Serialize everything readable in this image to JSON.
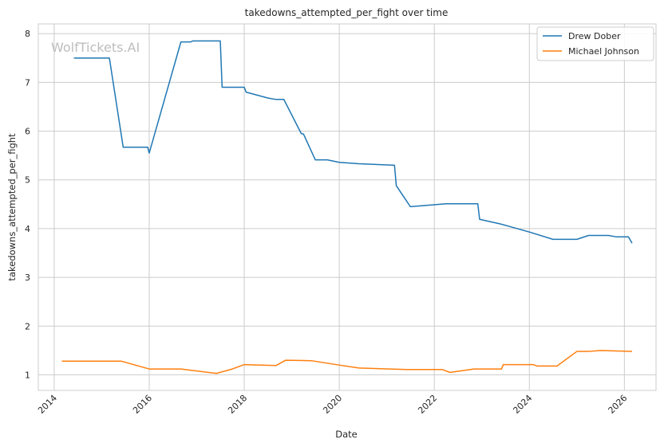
{
  "chart_data": {
    "type": "line",
    "title": "takedowns_attempted_per_fight over time",
    "xlabel": "Date",
    "ylabel": "takedowns_attempted_per_fight",
    "watermark": "WolfTickets.AI",
    "xlim": [
      "2013-09-01",
      "2026-09-01"
    ],
    "ylim": [
      0.68,
      8.2
    ],
    "x_ticks": [
      "2014-01-01",
      "2016-01-01",
      "2018-01-01",
      "2020-01-01",
      "2022-01-01",
      "2024-01-01",
      "2026-01-01"
    ],
    "x_tick_labels": [
      "2014",
      "2016",
      "2018",
      "2020",
      "2022",
      "2024",
      "2026"
    ],
    "y_ticks": [
      1,
      2,
      3,
      4,
      5,
      6,
      7,
      8
    ],
    "y_tick_labels": [
      "1",
      "2",
      "3",
      "4",
      "5",
      "6",
      "7",
      "8"
    ],
    "grid": true,
    "legend_position": "top-right",
    "series": [
      {
        "name": "Drew Dober",
        "color": "#1f77b4",
        "points": [
          [
            "2014-06-01",
            7.5
          ],
          [
            "2015-03-01",
            7.5
          ],
          [
            "2015-06-15",
            5.67
          ],
          [
            "2015-12-20",
            5.67
          ],
          [
            "2016-01-01",
            5.55
          ],
          [
            "2016-09-01",
            7.83
          ],
          [
            "2016-11-15",
            7.83
          ],
          [
            "2016-12-01",
            7.85
          ],
          [
            "2017-07-01",
            7.85
          ],
          [
            "2017-07-15",
            6.9
          ],
          [
            "2018-01-01",
            6.9
          ],
          [
            "2018-01-15",
            6.8
          ],
          [
            "2018-07-01",
            6.68
          ],
          [
            "2018-09-01",
            6.65
          ],
          [
            "2018-11-01",
            6.65
          ],
          [
            "2019-03-15",
            5.95
          ],
          [
            "2019-04-01",
            5.94
          ],
          [
            "2019-07-01",
            5.41
          ],
          [
            "2019-10-01",
            5.41
          ],
          [
            "2020-01-01",
            5.36
          ],
          [
            "2020-06-01",
            5.33
          ],
          [
            "2021-03-01",
            5.3
          ],
          [
            "2021-03-15",
            4.88
          ],
          [
            "2021-07-01",
            4.45
          ],
          [
            "2022-04-01",
            4.51
          ],
          [
            "2022-12-01",
            4.51
          ],
          [
            "2022-12-15",
            4.19
          ],
          [
            "2023-06-01",
            4.09
          ],
          [
            "2024-01-01",
            3.93
          ],
          [
            "2024-07-01",
            3.78
          ],
          [
            "2025-01-01",
            3.78
          ],
          [
            "2025-04-01",
            3.86
          ],
          [
            "2025-09-01",
            3.86
          ],
          [
            "2025-11-01",
            3.83
          ],
          [
            "2026-02-01",
            3.83
          ],
          [
            "2026-03-01",
            3.7
          ]
        ]
      },
      {
        "name": "Michael Johnson",
        "color": "#ff7f0e",
        "points": [
          [
            "2014-03-01",
            1.28
          ],
          [
            "2015-06-01",
            1.28
          ],
          [
            "2016-01-01",
            1.12
          ],
          [
            "2016-09-01",
            1.12
          ],
          [
            "2017-06-01",
            1.03
          ],
          [
            "2017-10-01",
            1.12
          ],
          [
            "2018-01-01",
            1.21
          ],
          [
            "2018-09-01",
            1.19
          ],
          [
            "2018-11-15",
            1.3
          ],
          [
            "2019-06-01",
            1.29
          ],
          [
            "2020-01-01",
            1.2
          ],
          [
            "2020-06-01",
            1.14
          ],
          [
            "2021-06-01",
            1.11
          ],
          [
            "2022-03-01",
            1.11
          ],
          [
            "2022-05-01",
            1.05
          ],
          [
            "2022-11-01",
            1.12
          ],
          [
            "2023-06-01",
            1.12
          ],
          [
            "2023-06-15",
            1.21
          ],
          [
            "2024-02-01",
            1.21
          ],
          [
            "2024-03-01",
            1.18
          ],
          [
            "2024-08-01",
            1.18
          ],
          [
            "2025-01-01",
            1.48
          ],
          [
            "2025-04-01",
            1.48
          ],
          [
            "2025-07-01",
            1.5
          ],
          [
            "2025-11-01",
            1.49
          ],
          [
            "2026-03-01",
            1.48
          ]
        ]
      }
    ]
  }
}
